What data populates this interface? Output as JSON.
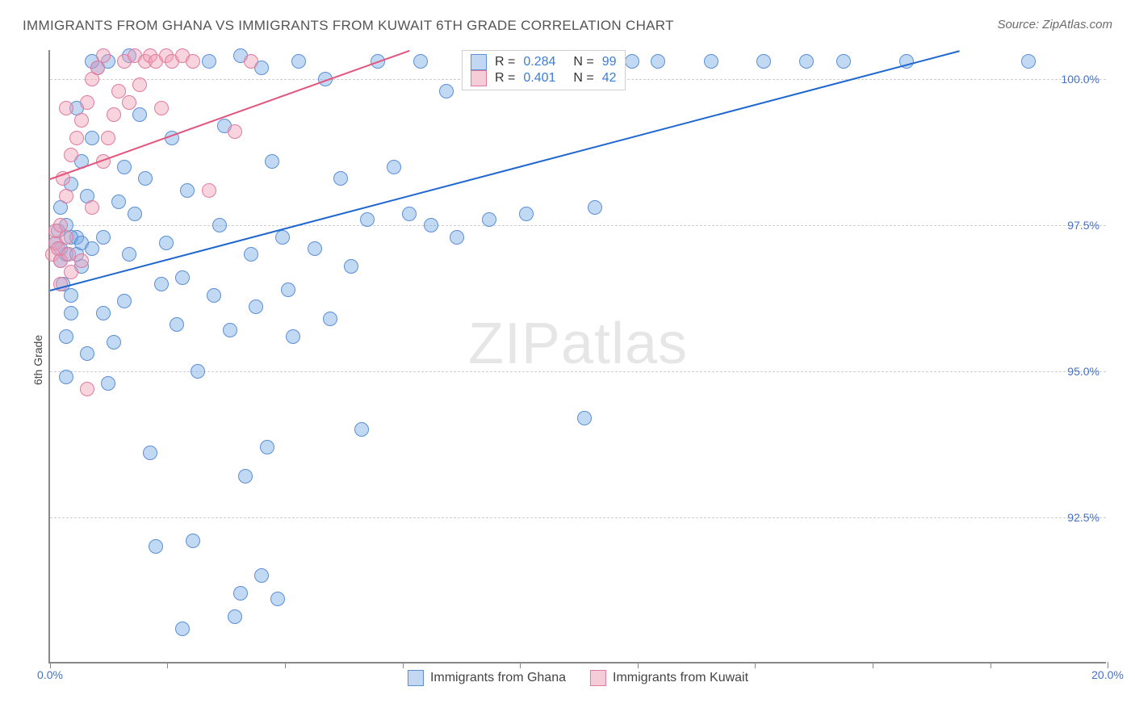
{
  "title": "IMMIGRANTS FROM GHANA VS IMMIGRANTS FROM KUWAIT 6TH GRADE CORRELATION CHART",
  "source": "Source: ZipAtlas.com",
  "ylabel": "6th Grade",
  "watermark_bold": "ZIP",
  "watermark_light": "atlas",
  "chart": {
    "type": "scatter",
    "xlim": [
      0,
      20
    ],
    "ylim": [
      90,
      100.5
    ],
    "xtick_labels": [
      "0.0%",
      "20.0%"
    ],
    "xtick_positions": [
      0,
      20
    ],
    "ytick_labels": [
      "92.5%",
      "95.0%",
      "97.5%",
      "100.0%"
    ],
    "ytick_positions": [
      92.5,
      95.0,
      97.5,
      100.0
    ],
    "xtick_minor_positions": [
      0,
      2.22,
      4.44,
      6.67,
      8.89,
      11.11,
      13.33,
      15.56,
      17.78,
      20
    ],
    "background_color": "#ffffff",
    "grid_color": "#cfcfcf",
    "axis_color": "#888888",
    "marker_radius": 9,
    "series": [
      {
        "name": "Immigrants from Ghana",
        "fill": "rgba(120,170,230,0.45)",
        "stroke": "#5b8fd6",
        "swatch_fill": "#c1d7f2",
        "swatch_border": "#5b8fd6",
        "r": "0.284",
        "n": "99",
        "trend": {
          "x1": 0,
          "y1": 96.4,
          "x2": 17.2,
          "y2": 100.5,
          "color": "#1e66d0",
          "width": 2
        },
        "points": [
          [
            0.1,
            97.2
          ],
          [
            0.2,
            96.9
          ],
          [
            0.15,
            97.4
          ],
          [
            0.3,
            97.0
          ],
          [
            0.25,
            96.5
          ],
          [
            0.4,
            96.0
          ],
          [
            0.3,
            95.6
          ],
          [
            0.5,
            97.3
          ],
          [
            0.6,
            96.8
          ],
          [
            0.7,
            98.0
          ],
          [
            0.6,
            98.6
          ],
          [
            0.8,
            99.0
          ],
          [
            0.5,
            99.5
          ],
          [
            0.9,
            100.2
          ],
          [
            1.1,
            100.3
          ],
          [
            1.0,
            96.0
          ],
          [
            1.2,
            95.5
          ],
          [
            1.1,
            94.8
          ],
          [
            1.4,
            96.2
          ],
          [
            1.5,
            97.0
          ],
          [
            1.6,
            97.7
          ],
          [
            1.7,
            99.4
          ],
          [
            1.5,
            100.4
          ],
          [
            1.9,
            93.6
          ],
          [
            2.0,
            92.0
          ],
          [
            2.1,
            96.5
          ],
          [
            2.2,
            97.2
          ],
          [
            2.3,
            99.0
          ],
          [
            2.4,
            95.8
          ],
          [
            2.5,
            96.6
          ],
          [
            2.6,
            98.1
          ],
          [
            2.7,
            92.1
          ],
          [
            2.8,
            95.0
          ],
          [
            3.0,
            100.3
          ],
          [
            3.1,
            96.3
          ],
          [
            3.2,
            97.5
          ],
          [
            3.3,
            99.2
          ],
          [
            3.4,
            95.7
          ],
          [
            3.5,
            90.8
          ],
          [
            3.6,
            100.4
          ],
          [
            3.7,
            93.2
          ],
          [
            3.8,
            97.0
          ],
          [
            3.9,
            96.1
          ],
          [
            4.0,
            100.2
          ],
          [
            4.1,
            93.7
          ],
          [
            4.2,
            98.6
          ],
          [
            4.3,
            91.1
          ],
          [
            4.4,
            97.3
          ],
          [
            4.5,
            96.4
          ],
          [
            4.6,
            95.6
          ],
          [
            4.7,
            100.3
          ],
          [
            5.0,
            97.1
          ],
          [
            5.2,
            100.0
          ],
          [
            5.3,
            95.9
          ],
          [
            5.5,
            98.3
          ],
          [
            5.7,
            96.8
          ],
          [
            5.9,
            94.0
          ],
          [
            6.0,
            97.6
          ],
          [
            6.2,
            100.3
          ],
          [
            6.5,
            98.5
          ],
          [
            6.8,
            97.7
          ],
          [
            7.0,
            100.3
          ],
          [
            7.2,
            97.5
          ],
          [
            7.5,
            99.8
          ],
          [
            7.7,
            97.3
          ],
          [
            8.0,
            100.3
          ],
          [
            8.3,
            97.6
          ],
          [
            8.6,
            100.3
          ],
          [
            9.0,
            97.7
          ],
          [
            9.5,
            100.3
          ],
          [
            10.1,
            94.2
          ],
          [
            10.3,
            97.8
          ],
          [
            11.0,
            100.3
          ],
          [
            11.5,
            100.3
          ],
          [
            12.5,
            100.3
          ],
          [
            13.5,
            100.3
          ],
          [
            14.3,
            100.3
          ],
          [
            15.0,
            100.3
          ],
          [
            16.2,
            100.3
          ],
          [
            18.5,
            100.3
          ],
          [
            0.2,
            97.1
          ],
          [
            0.4,
            97.3
          ],
          [
            0.3,
            97.5
          ],
          [
            0.5,
            97.0
          ],
          [
            0.6,
            97.2
          ],
          [
            0.8,
            97.1
          ],
          [
            1.0,
            97.3
          ],
          [
            1.3,
            97.9
          ],
          [
            1.4,
            98.5
          ],
          [
            1.8,
            98.3
          ],
          [
            3.6,
            91.2
          ],
          [
            4.0,
            91.5
          ],
          [
            2.5,
            90.6
          ],
          [
            0.4,
            96.3
          ],
          [
            0.7,
            95.3
          ],
          [
            0.3,
            94.9
          ],
          [
            0.2,
            97.8
          ],
          [
            0.4,
            98.2
          ],
          [
            0.8,
            100.3
          ]
        ]
      },
      {
        "name": "Immigrants from Kuwait",
        "fill": "rgba(240,160,185,0.45)",
        "stroke": "#e07b9c",
        "swatch_fill": "#f5cdd9",
        "swatch_border": "#e07b9c",
        "r": "0.401",
        "n": "42",
        "trend": {
          "x1": 0,
          "y1": 98.3,
          "x2": 6.8,
          "y2": 100.5,
          "color": "#e4557d",
          "width": 2
        },
        "points": [
          [
            0.05,
            97.0
          ],
          [
            0.1,
            97.2
          ],
          [
            0.15,
            97.1
          ],
          [
            0.2,
            96.9
          ],
          [
            0.1,
            97.4
          ],
          [
            0.2,
            97.5
          ],
          [
            0.3,
            97.3
          ],
          [
            0.35,
            97.0
          ],
          [
            0.3,
            98.0
          ],
          [
            0.25,
            98.3
          ],
          [
            0.4,
            98.7
          ],
          [
            0.5,
            99.0
          ],
          [
            0.6,
            99.3
          ],
          [
            0.7,
            99.6
          ],
          [
            0.8,
            100.0
          ],
          [
            0.9,
            100.2
          ],
          [
            1.0,
            100.4
          ],
          [
            1.1,
            99.0
          ],
          [
            1.2,
            99.4
          ],
          [
            1.3,
            99.8
          ],
          [
            1.4,
            100.3
          ],
          [
            1.5,
            99.6
          ],
          [
            1.6,
            100.4
          ],
          [
            1.7,
            99.9
          ],
          [
            1.8,
            100.3
          ],
          [
            1.9,
            100.4
          ],
          [
            2.0,
            100.3
          ],
          [
            2.1,
            99.5
          ],
          [
            2.2,
            100.4
          ],
          [
            2.3,
            100.3
          ],
          [
            2.5,
            100.4
          ],
          [
            2.7,
            100.3
          ],
          [
            3.0,
            98.1
          ],
          [
            3.5,
            99.1
          ],
          [
            3.8,
            100.3
          ],
          [
            0.2,
            96.5
          ],
          [
            0.4,
            96.7
          ],
          [
            0.6,
            96.9
          ],
          [
            0.8,
            97.8
          ],
          [
            1.0,
            98.6
          ],
          [
            0.7,
            94.7
          ],
          [
            0.3,
            99.5
          ]
        ]
      }
    ]
  }
}
